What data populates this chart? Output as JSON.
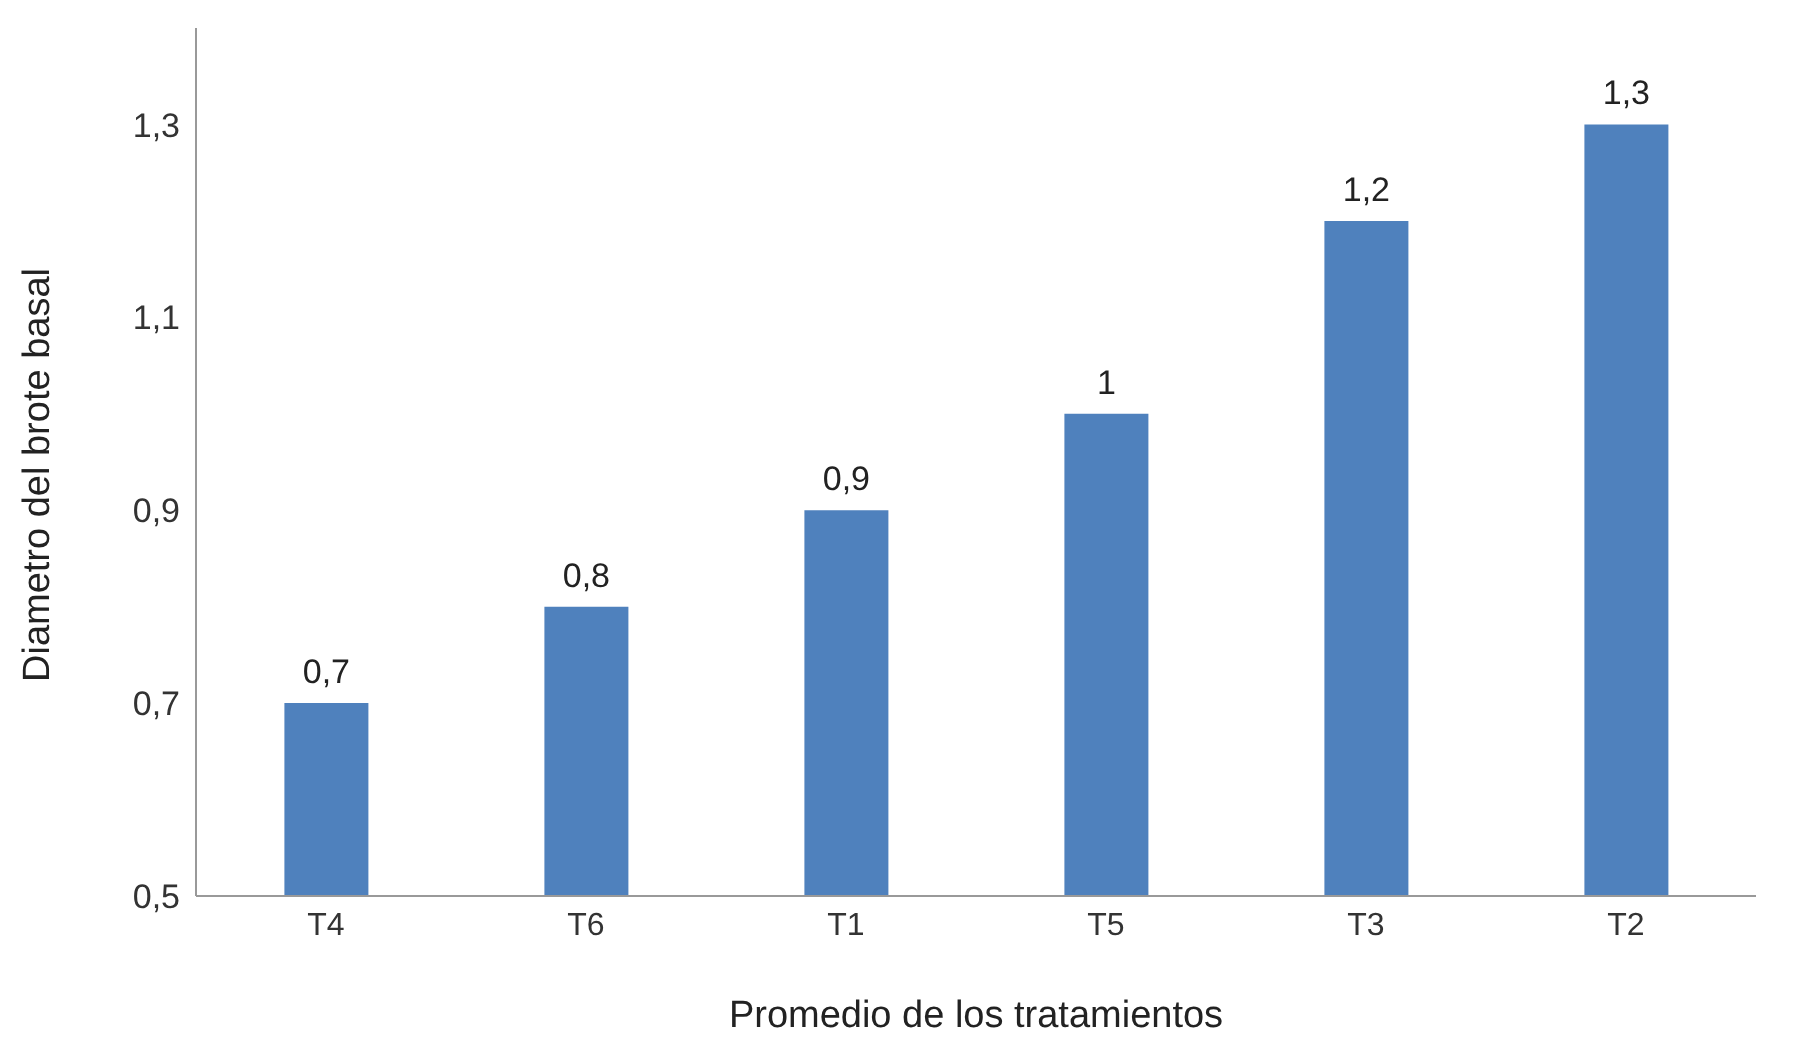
{
  "chart_data": {
    "type": "bar",
    "xlabel": "Promedio de los tratamientos",
    "ylabel": "Diametro del brote basal",
    "categories": [
      "T4",
      "T6",
      "T1",
      "T5",
      "T3",
      "T2"
    ],
    "values": [
      0.7,
      0.8,
      0.9,
      1,
      1.2,
      1.3
    ],
    "value_labels": [
      "0,7",
      "0,8",
      "0,9",
      "1",
      "1,2",
      "1,3"
    ],
    "color": "#4f81bd",
    "ylim": [
      0.5,
      1.4
    ],
    "yticks": [
      {
        "value": 0.5,
        "label": "0,5"
      },
      {
        "value": 0.7,
        "label": "0,7"
      },
      {
        "value": 0.9,
        "label": "0,9"
      },
      {
        "value": 1.1,
        "label": "1,1"
      },
      {
        "value": 1.3,
        "label": "1,3"
      }
    ],
    "grid": false,
    "legend": false
  }
}
